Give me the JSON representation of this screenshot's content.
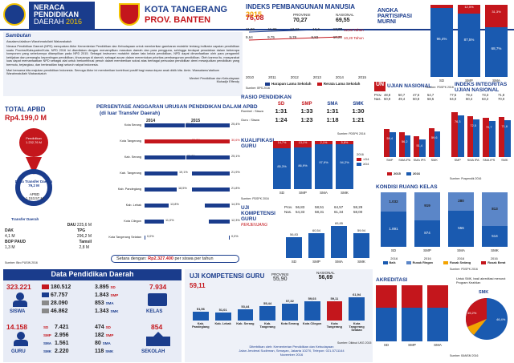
{
  "header": {
    "title_line1": "NERACA",
    "title_line2": "PENDIDIKAN",
    "title_line3": "DAERAH",
    "title_year": "2016",
    "kota": "KOTA TANGERANG",
    "prov": "PROV. BANTEN"
  },
  "ipm": {
    "title": "INDEKS PEMBANGUNAN MANUSIA",
    "year": "2015",
    "kota_val": "76,08",
    "prov_label": "PROVINSI",
    "prov_val": "70,27",
    "nas_label": "NASIONAL",
    "nas_val": "69,55",
    "upper_vals": [
      "11,90",
      "11,86",
      "12,23",
      "12,6",
      "12,06"
    ],
    "lower_vals": [
      "9,64",
      "9,75",
      "9,78",
      "9,82",
      "10,21"
    ],
    "years": [
      "2010",
      "2011",
      "2012",
      "2013",
      "2014",
      "2015"
    ],
    "tag1": "12,50 Tahun",
    "tag2": "10,20 Tahun",
    "legend1": "Harapan Lama Sekolah",
    "legend2": "Rerata Lama Sekolah",
    "source": "Sumber: BPS 2016"
  },
  "apm": {
    "title": "ANGKA PARTISIPASI MURNI",
    "cats": [
      "SD",
      "SMP",
      "SMA"
    ],
    "vals": [
      "96,4%",
      "87,5%",
      "68,7%"
    ],
    "tops": [
      "3,6%",
      "12,5%",
      "31,3%"
    ],
    "source": "Sumber: PDSPK 2016"
  },
  "sambutan": {
    "title": "Sambutan",
    "greeting": "Assalamu'alaikum Warahmatullahi Wabarakatuh",
    "para1": "Neraca Pendidikan Daerah (NPD) merupakan Aktor Kementerian Pendidikan dan Kebudayaan untuk memberikan gambaran mutakhir tentang indikator capaian pendidikan suatu Provinsi/Kabupaten/Kota. NPD 2016 ini disediakan dengan menampilkan masukan daerah dan para pengguna, sehingga terdapat peradaban dalam beberapa komponen yang sebelumnya ditampilkan pada NPD 2015. Sebagai instrumen mutakhir dalam tata kelola pendidikan, NPD dapat dimanfaatkan oleh para pengambil kebijakan dan pemangku kepentingan pendidikan, khususnya di daerah, sebagai acuan dalam menentukan prioritas pembangunan pendidikan. Oleh karena itu, masyarakat luas dapat memanfaatkan NPD sebagai alat untuk berkontribusi penuh dalam memberikan solusi atas berbagai persoalan pendidikan demi mewujudkan pendidikan yang bermutu, terjangkau, dan berkeadilan bagi seluruh rakyat Indonesia.",
    "para2": "Mari bersama kita majukan pendidikan Indonesia. Semoga Aktor ini memberikan kontribusi positif bagi masa depan anak didik kita. Amin. Wassalamu'alaikum Warahmatullahi Wabarakatuh",
    "sign1": "Menteri Pendidikan dan Kebudayaan",
    "sign2": "Muhadjir Effendy"
  },
  "apbd": {
    "title": "TOTAL APBD",
    "value": "Rp4.199,0 M",
    "pend_label": "Pendidikan",
    "pend_val": "1.232,76 M",
    "transfer_label": "Dana Transfer Daerah",
    "transfer_val": "79,2 M",
    "apbd_label": "APBD",
    "apbd_val": "1.153,57 M",
    "td_label": "Transfer Daerah",
    "dau_label": "DAU",
    "dau_val": "225,6 M",
    "dak_label": "DAK",
    "dak_val": "4,1 M",
    "tpg_label": "TPG",
    "tpg_val": "296,2 M",
    "bop_label": "BOP PAUD",
    "bop_val": "1,3 M",
    "tamsil_label": "Tamsil",
    "tamsil_val": "2,8 M",
    "source": "Sumber: Biro PUSIN 2016"
  },
  "persentase": {
    "title": "PERSENTASE ANGGARAN URUSAN PENDIDIKAN DALAM APBD",
    "subtitle": "(di luar Transfer Daerah)",
    "year1": "2014",
    "year2": "2015",
    "rows": [
      {
        "name": "Kota Serang",
        "v1": "23,0%",
        "v2": "25,4%",
        "w1": 0.5,
        "w2": 0.55
      },
      {
        "name": "Kota Tangerang",
        "v1": "26,2%",
        "v2": "30,6%",
        "w1": 0.57,
        "w2": 0.66,
        "hl": true
      },
      {
        "name": "Kab. Serang",
        "v1": "23,7%",
        "v2": "25,1%",
        "w1": 0.51,
        "w2": 0.54
      },
      {
        "name": "Kab. Tangerang",
        "v1": "19,1%",
        "v2": "21,9%",
        "w1": 0.41,
        "w2": 0.47
      },
      {
        "name": "Kab. Pandeglang",
        "v1": "18,5%",
        "v2": "21,8%",
        "w1": 0.4,
        "w2": 0.47
      },
      {
        "name": "Kab. Lebak",
        "v1": "13,8%",
        "v2": "14,3%",
        "w1": 0.3,
        "w2": 0.31
      },
      {
        "name": "Kota Cilegon",
        "v1": "11,0%",
        "v2": "12,3%",
        "w1": 0.24,
        "w2": 0.26
      },
      {
        "name": "Kota Tangerang Selatan",
        "v1": "0,0%",
        "v2": "0,0%",
        "w1": 0.01,
        "w2": 0.01
      }
    ],
    "setara_label": "Setara dengan:",
    "setara_val": "Rp2.327.400",
    "setara_unit": "per siswa per tahun"
  },
  "rasio": {
    "title": "RASIO PENDIDIKAN",
    "rombel_label": "Rombel : Siswa",
    "guru_label": "Guru : Siswa",
    "cats": [
      "SD",
      "SMP",
      "SMA",
      "SMK"
    ],
    "rombel": [
      "1:31",
      "1:33",
      "1:31",
      "1:30"
    ],
    "guru": [
      "1:24",
      "1:23",
      "1:18",
      "1:21"
    ],
    "source": "Sumber: PDSPK 2016"
  },
  "kualifikasi": {
    "title": "KUALIFIKASI GURU",
    "cats": [
      "SD",
      "SMP",
      "SMA",
      "SMK"
    ],
    "lower": [
      "85,3%",
      "86,9%",
      "97,9%",
      "94,2%"
    ],
    "upper": [
      "14,7%",
      "13,1%",
      "2,1%",
      "5,8%"
    ],
    "legend_year": "2016",
    "legend1": "<D4",
    "legend2": "≥D4",
    "source": "Sumber: PDSPK 2016"
  },
  "ukg": {
    "title": "UJI KOMPETENSI GURU",
    "subtitle": "PERJENJANG",
    "prov_label": "Prov.",
    "nas_label": "Nas.",
    "prov": [
      "56,83",
      "58,51",
      "64,57",
      "58,29"
    ],
    "nas": [
      "54,33",
      "58,31",
      "61,34",
      "58,00"
    ],
    "cats": [
      "SD",
      "SMP",
      "SMA",
      "SMK"
    ],
    "vals": [
      "56,83",
      "60,54",
      "65,85",
      "59,94"
    ],
    "source": "Sumber: Dikbud UKG 2015"
  },
  "un": {
    "title": "UJIAN NASIONAL",
    "prov_label": "Prov.",
    "nas_label": "Nas.",
    "prov": [
      "48,8",
      "50,7",
      "47,6",
      "54,7"
    ],
    "nas": [
      "50,9",
      "49,4",
      "50,8",
      "58,5"
    ],
    "cats": [
      "SMP",
      "SMA IPA",
      "SMA IPS",
      "SMK"
    ],
    "vals_2015": [
      "59,4",
      "56,2",
      "51,4",
      "59,6"
    ],
    "legend1": "2015",
    "legend2": "2016"
  },
  "iiun": {
    "title": "INDEKS INTEGRITAS UJIAN NASIONAL",
    "prov": [
      "77,5",
      "79,4",
      "73,3",
      "71,8"
    ],
    "nas": [
      "64,0",
      "60,4",
      "63,2",
      "70,0"
    ],
    "cats": [
      "SMP",
      "SMA IPA",
      "SMA IPS",
      "SMK"
    ],
    "vals_2015": [
      "76,3",
      "72,5",
      "70,7",
      "71,6"
    ],
    "source": "Sumber: Puspendik 2016"
  },
  "rkelas": {
    "title": "KONDISI RUANG KELAS",
    "cats": [
      "SD",
      "SMP",
      "SMA",
      "SMK"
    ],
    "top": [
      "1.032",
      "919",
      "280",
      "813"
    ],
    "bottom": [
      "1.891",
      "874",
      "556",
      "514"
    ],
    "legend": [
      "Baik",
      "Rusak Ringan",
      "Rusak Sedang",
      "Rusak Berat"
    ],
    "year_row": [
      "2016",
      "2016",
      "2016",
      "2016"
    ],
    "source": "Sumber: PDSPK 2016"
  },
  "dataPend": {
    "title": "Data Pendidikan Daerah",
    "siswa_total": "323.221",
    "siswa_label": "SISWA",
    "siswa_sd": "180.512",
    "siswa_smp": "67.757",
    "siswa_sma": "28.090",
    "siswa_smk": "46.862",
    "kelas_total": "7.934",
    "kelas_label": "KELAS",
    "kelas_sd": "3.895",
    "kelas_smp": "1.843",
    "kelas_sma": "853",
    "kelas_smk": "1.343",
    "guru_total": "14.158",
    "guru_label": "GURU",
    "guru_sd": "7.421",
    "guru_smp": "2.956",
    "guru_sma": "1.561",
    "guru_smk": "2.220",
    "sekolah_total": "854",
    "sekolah_label": "SEKOLAH",
    "sek_sd": "474",
    "sek_smp": "182",
    "sek_sma": "80",
    "sek_smk": "118",
    "lbl_sd": "SD",
    "lbl_smp": "SMP",
    "lbl_sma": "SMA",
    "lbl_smk": "SMK"
  },
  "ukgDaerah": {
    "title": "UJI KOMPETENSI GURU",
    "kota_val": "59,11",
    "prov_label": "PROVINSI",
    "prov_val": "55,90",
    "nas_label": "NASIONAL",
    "nas_val": "56,69",
    "cats": [
      "Kab. Pandeglang",
      "Kab. Lebak",
      "Kab. Serang",
      "Kab. Tangerang",
      "Kota Serang",
      "Kota Cilegon",
      "Kota Tangerang",
      "Kota Tangerang Selatan"
    ],
    "vals": [
      "51,56",
      "51,01",
      "53,44",
      "55,44",
      "57,32",
      "59,03",
      "59,11",
      "61,94"
    ],
    "source": "Sumber: Dikbud UKG 2015",
    "footer1": "Diterbitkan oleh: Kementerian Pendidikan dan Kebudayaan",
    "footer2": "Jalan Jenderal Sudirman, Senayan, Jakarta 10270, Telepon: 021-5711144",
    "footer3": "November 2016"
  },
  "akreditasi": {
    "title": "AKREDITASI",
    "cats": [
      "SD",
      "SMP",
      "SMA"
    ],
    "note": "Untuk SMK, hasil akreditasi menurut Program Keahlian",
    "smk_label": "SMK",
    "smk_a": "46,4%",
    "smk_b": "45,2%",
    "source": "Sumber: BANSM 2016"
  }
}
